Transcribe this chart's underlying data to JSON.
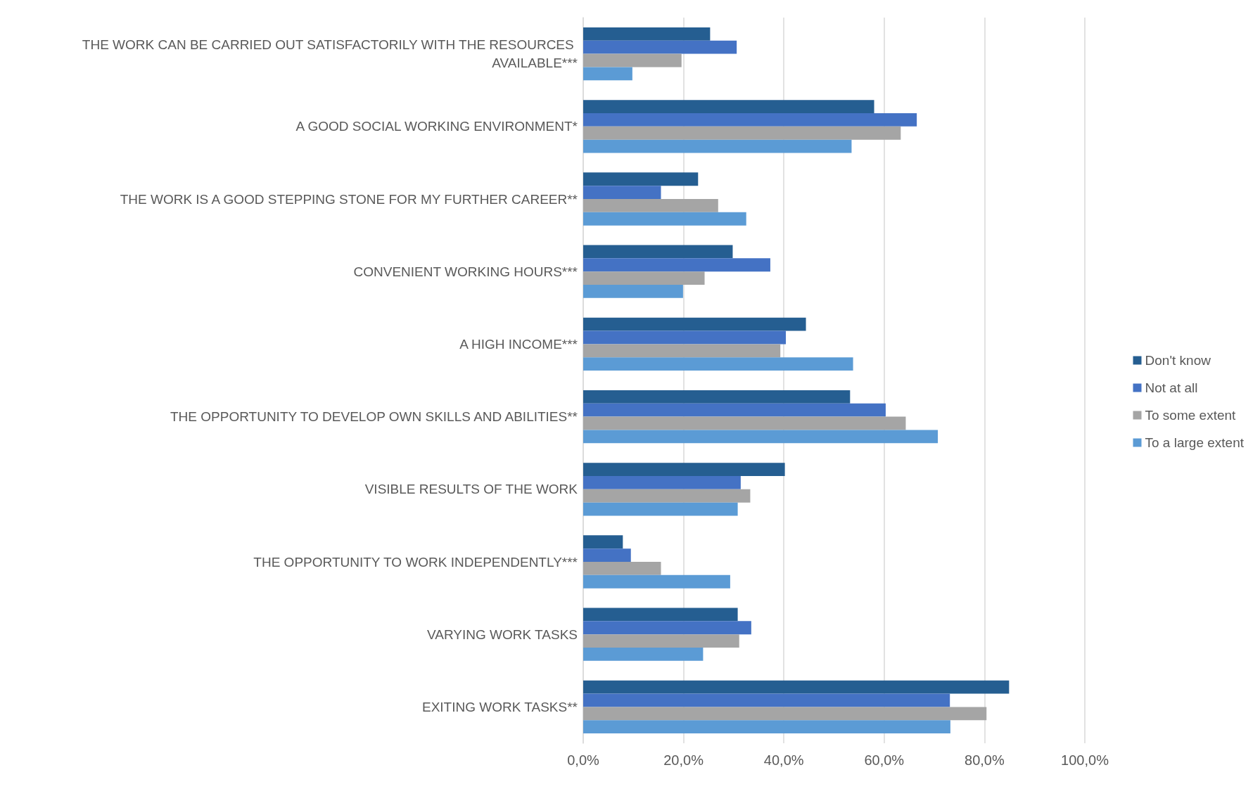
{
  "chart_data": {
    "type": "bar",
    "orientation": "horizontal",
    "categories": [
      "THE WORK CAN BE CARRIED OUT SATISFACTORILY WITH THE RESOURCES AVAILABLE***",
      "A GOOD SOCIAL WORKING ENVIRONMENT*",
      "THE WORK IS A GOOD STEPPING STONE FOR MY FURTHER CAREER**",
      "CONVENIENT WORKING HOURS***",
      "A HIGH INCOME***",
      "THE OPPORTUNITY TO DEVELOP OWN SKILLS AND ABILITIES**",
      "VISIBLE RESULTS OF THE WORK",
      "THE OPPORTUNITY TO WORK INDEPENDENTLY***",
      "VARYING WORK TASKS",
      "EXITING WORK TASKS**"
    ],
    "series": [
      {
        "name": "Don't know",
        "color": "#255e91",
        "values": [
          25.3,
          58.0,
          22.9,
          29.8,
          44.4,
          53.2,
          40.2,
          7.9,
          30.8,
          84.9
        ]
      },
      {
        "name": "Not at all",
        "color": "#4472c4",
        "values": [
          30.6,
          66.5,
          15.5,
          37.3,
          40.4,
          60.3,
          31.4,
          9.5,
          33.5,
          73.1
        ]
      },
      {
        "name": "To some extent",
        "color": "#a5a5a5",
        "values": [
          19.6,
          63.3,
          26.9,
          24.2,
          39.3,
          64.3,
          33.3,
          15.5,
          31.1,
          80.4
        ]
      },
      {
        "name": "To a large extent",
        "color": "#5b9bd5",
        "values": [
          9.8,
          53.5,
          32.5,
          19.9,
          53.8,
          70.7,
          30.8,
          29.3,
          23.9,
          73.2
        ]
      }
    ],
    "xlim": [
      0,
      100
    ],
    "xticks": [
      {
        "value": 0,
        "label": "0,0%"
      },
      {
        "value": 20,
        "label": "20,0%"
      },
      {
        "value": 40,
        "label": "40,0%"
      },
      {
        "value": 60,
        "label": "60,0%"
      },
      {
        "value": 80,
        "label": "80,0%"
      },
      {
        "value": 100,
        "label": "100,0%"
      }
    ],
    "grid": "x",
    "legend": "right"
  }
}
